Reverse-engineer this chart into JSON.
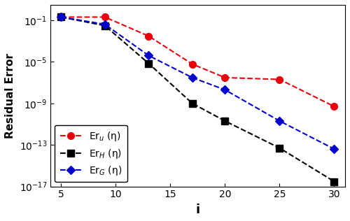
{
  "x": [
    5,
    9,
    13,
    17,
    20,
    25,
    30
  ],
  "y_u": [
    0.2,
    0.2,
    0.003,
    6e-06,
    3e-07,
    2e-07,
    5e-10
  ],
  "y_H": [
    0.2,
    0.03,
    7e-06,
    1e-09,
    2e-11,
    5e-14,
    3e-17
  ],
  "y_G": [
    0.2,
    0.04,
    4e-05,
    3e-07,
    2e-08,
    2e-11,
    4e-14
  ],
  "color_u": "#e8000b",
  "color_H": "#000000",
  "color_G": "#0000cc",
  "ylabel": "Residual Error",
  "xlabel": "i",
  "ylim_low": 1e-17,
  "ylim_high": 3.0,
  "xlim_low": 4,
  "xlim_high": 31,
  "yticks": [
    1e-17,
    1e-13,
    1e-09,
    1e-05,
    0.1
  ],
  "xticks": [
    5,
    10,
    15,
    20,
    25,
    30
  ],
  "label_u": "Er$_u$ (η)",
  "label_H": "Er$_H$ (η)",
  "label_G": "Er$_G$ (η)"
}
